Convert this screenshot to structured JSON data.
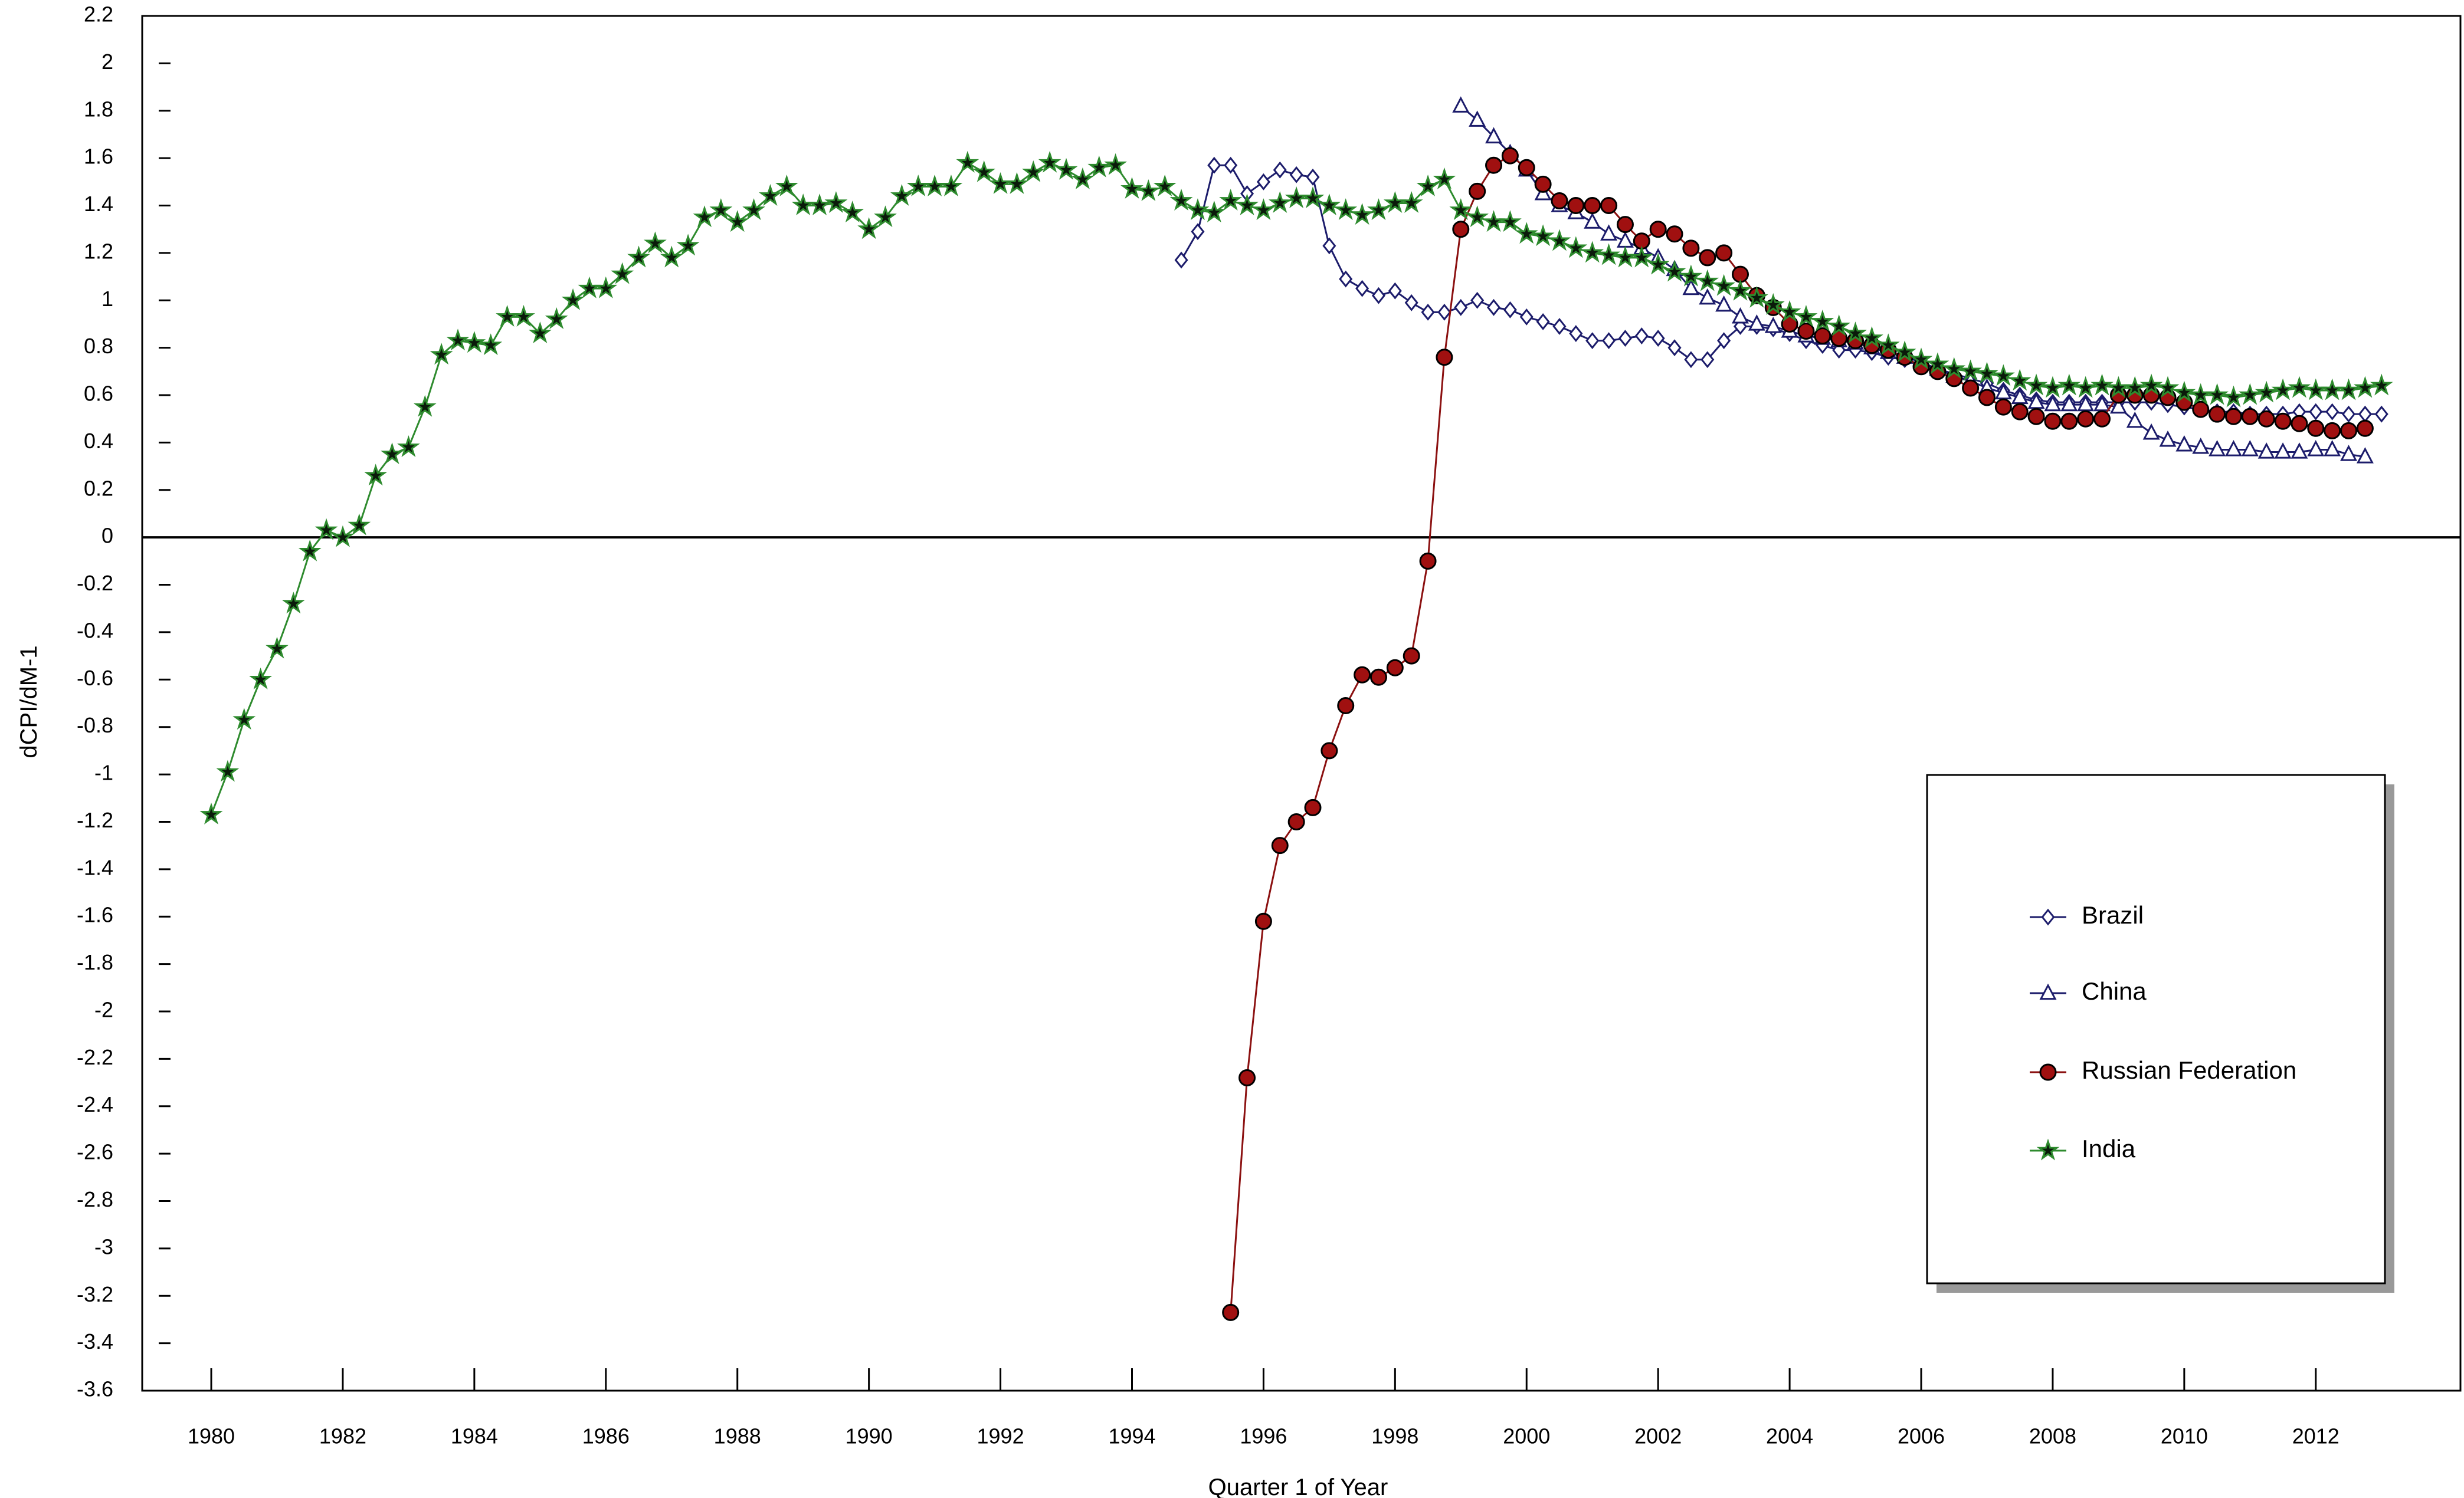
{
  "chart_data": {
    "type": "line",
    "x_label": "Quarter 1 of Year",
    "y_label": "dCPI/dM-1",
    "xlim": [
      1978.95,
      2014.2
    ],
    "xticks": [
      1980,
      1982,
      1984,
      1986,
      1988,
      1990,
      1992,
      1994,
      1996,
      1998,
      2000,
      2002,
      2004,
      2006,
      2008,
      2010,
      2012
    ],
    "ylim": [
      -3.6,
      2.2
    ],
    "yticks": [
      -3.6,
      -3.4,
      -3.2,
      -3,
      -2.8,
      -2.6,
      -2.4,
      -2.2,
      -2,
      -1.8,
      -1.6,
      -1.4,
      -1.2,
      -1,
      -0.8,
      -0.6,
      -0.4,
      -0.2,
      0,
      0.2,
      0.4,
      0.6,
      0.8,
      1,
      1.2,
      1.4,
      1.6,
      1.8,
      2,
      2.2
    ],
    "legend": "lower right",
    "series": [
      {
        "name": "Brazil",
        "color": "#1c1c6b",
        "marker": "diamond",
        "marker_fill": "#ffffff",
        "x": [
          1994.75,
          1995,
          1995.25,
          1995.5,
          1995.75,
          1996,
          1996.25,
          1996.5,
          1996.75,
          1997,
          1997.25,
          1997.5,
          1997.75,
          1998,
          1998.25,
          1998.5,
          1998.75,
          1999,
          1999.25,
          1999.5,
          1999.75,
          2000,
          2000.25,
          2000.5,
          2000.75,
          2001,
          2001.25,
          2001.5,
          2001.75,
          2002,
          2002.25,
          2002.5,
          2002.75,
          2003,
          2003.25,
          2003.5,
          2003.75,
          2004,
          2004.25,
          2004.5,
          2004.75,
          2005,
          2005.25,
          2005.5,
          2005.75,
          2006,
          2006.25,
          2006.5,
          2006.75,
          2007,
          2007.25,
          2007.5,
          2007.75,
          2008,
          2008.25,
          2008.5,
          2008.75,
          2009,
          2009.25,
          2009.5,
          2009.75,
          2010,
          2010.25,
          2010.5,
          2010.75,
          2011,
          2011.25,
          2011.5,
          2011.75,
          2012,
          2012.25,
          2012.5,
          2012.75,
          2013
        ],
        "values": [
          1.17,
          1.29,
          1.57,
          1.57,
          1.45,
          1.5,
          1.55,
          1.53,
          1.52,
          1.23,
          1.09,
          1.05,
          1.02,
          1.04,
          0.99,
          0.95,
          0.95,
          0.97,
          1.0,
          0.97,
          0.96,
          0.93,
          0.91,
          0.89,
          0.86,
          0.83,
          0.83,
          0.84,
          0.85,
          0.84,
          0.8,
          0.75,
          0.75,
          0.83,
          0.89,
          0.89,
          0.88,
          0.86,
          0.83,
          0.81,
          0.79,
          0.79,
          0.78,
          0.76,
          0.75,
          0.73,
          0.71,
          0.69,
          0.67,
          0.65,
          0.62,
          0.6,
          0.58,
          0.57,
          0.57,
          0.57,
          0.57,
          0.57,
          0.57,
          0.57,
          0.56,
          0.55,
          0.54,
          0.53,
          0.53,
          0.52,
          0.52,
          0.52,
          0.53,
          0.53,
          0.53,
          0.52,
          0.52,
          0.52
        ]
      },
      {
        "name": "China",
        "color": "#1c1c6b",
        "marker": "triangle",
        "marker_fill": "#ffffff",
        "x": [
          1999,
          1999.25,
          1999.5,
          1999.75,
          2000,
          2000.25,
          2000.5,
          2000.75,
          2001,
          2001.25,
          2001.5,
          2001.75,
          2002,
          2002.25,
          2002.5,
          2002.75,
          2003,
          2003.25,
          2003.5,
          2003.75,
          2004,
          2004.25,
          2004.5,
          2004.75,
          2005,
          2005.25,
          2005.5,
          2005.75,
          2006,
          2006.25,
          2006.5,
          2006.75,
          2007,
          2007.25,
          2007.5,
          2007.75,
          2008,
          2008.25,
          2008.5,
          2008.75,
          2009,
          2009.25,
          2009.5,
          2009.75,
          2010,
          2010.25,
          2010.5,
          2010.75,
          2011,
          2011.25,
          2011.5,
          2011.75,
          2012,
          2012.25,
          2012.5,
          2012.75
        ],
        "values": [
          1.82,
          1.76,
          1.69,
          1.62,
          1.55,
          1.45,
          1.4,
          1.37,
          1.33,
          1.28,
          1.25,
          1.22,
          1.18,
          1.13,
          1.05,
          1.01,
          0.98,
          0.93,
          0.9,
          0.89,
          0.87,
          0.85,
          0.84,
          0.83,
          0.82,
          0.8,
          0.78,
          0.76,
          0.74,
          0.71,
          0.68,
          0.66,
          0.63,
          0.61,
          0.59,
          0.57,
          0.56,
          0.56,
          0.56,
          0.56,
          0.55,
          0.49,
          0.44,
          0.41,
          0.39,
          0.38,
          0.37,
          0.37,
          0.37,
          0.36,
          0.36,
          0.36,
          0.37,
          0.37,
          0.35,
          0.34
        ]
      },
      {
        "name": "Russian Federation",
        "color": "#8b1010",
        "marker": "circle",
        "marker_fill": "#a01010",
        "x": [
          1995.5,
          1995.75,
          1996,
          1996.25,
          1996.5,
          1996.75,
          1997,
          1997.25,
          1997.5,
          1997.75,
          1998,
          1998.25,
          1998.5,
          1998.75,
          1999,
          1999.25,
          1999.5,
          1999.75,
          2000,
          2000.25,
          2000.5,
          2000.75,
          2001,
          2001.25,
          2001.5,
          2001.75,
          2002,
          2002.25,
          2002.5,
          2002.75,
          2003,
          2003.25,
          2003.5,
          2003.75,
          2004,
          2004.25,
          2004.5,
          2004.75,
          2005,
          2005.25,
          2005.5,
          2005.75,
          2006,
          2006.25,
          2006.5,
          2006.75,
          2007,
          2007.25,
          2007.5,
          2007.75,
          2008,
          2008.25,
          2008.5,
          2008.75,
          2009,
          2009.25,
          2009.5,
          2009.75,
          2010,
          2010.25,
          2010.5,
          2010.75,
          2011,
          2011.25,
          2011.5,
          2011.75,
          2012,
          2012.25,
          2012.5,
          2012.75
        ],
        "values": [
          -3.27,
          -2.28,
          -1.62,
          -1.3,
          -1.2,
          -1.14,
          -0.9,
          -0.71,
          -0.58,
          -0.59,
          -0.55,
          -0.5,
          -0.1,
          0.76,
          1.3,
          1.46,
          1.57,
          1.61,
          1.56,
          1.49,
          1.42,
          1.4,
          1.4,
          1.4,
          1.32,
          1.25,
          1.3,
          1.28,
          1.22,
          1.18,
          1.2,
          1.11,
          1.02,
          0.97,
          0.9,
          0.87,
          0.85,
          0.84,
          0.83,
          0.81,
          0.79,
          0.76,
          0.72,
          0.7,
          0.67,
          0.63,
          0.59,
          0.55,
          0.53,
          0.51,
          0.49,
          0.49,
          0.5,
          0.5,
          0.6,
          0.6,
          0.6,
          0.59,
          0.57,
          0.54,
          0.52,
          0.51,
          0.51,
          0.5,
          0.49,
          0.48,
          0.46,
          0.45,
          0.45,
          0.46
        ]
      },
      {
        "name": "India",
        "color": "#2e8b2e",
        "marker": "star",
        "marker_fill": "#0a1a0a",
        "x": [
          1980,
          1980.25,
          1980.5,
          1980.75,
          1981,
          1981.25,
          1981.5,
          1981.75,
          1982,
          1982.25,
          1982.5,
          1982.75,
          1983,
          1983.25,
          1983.5,
          1983.75,
          1984,
          1984.25,
          1984.5,
          1984.75,
          1985,
          1985.25,
          1985.5,
          1985.75,
          1986,
          1986.25,
          1986.5,
          1986.75,
          1987,
          1987.25,
          1987.5,
          1987.75,
          1988,
          1988.25,
          1988.5,
          1988.75,
          1989,
          1989.25,
          1989.5,
          1989.75,
          1990,
          1990.25,
          1990.5,
          1990.75,
          1991,
          1991.25,
          1991.5,
          1991.75,
          1992,
          1992.25,
          1992.5,
          1992.75,
          1993,
          1993.25,
          1993.5,
          1993.75,
          1994,
          1994.25,
          1994.5,
          1994.75,
          1995,
          1995.25,
          1995.5,
          1995.75,
          1996,
          1996.25,
          1996.5,
          1996.75,
          1997,
          1997.25,
          1997.5,
          1997.75,
          1998,
          1998.25,
          1998.5,
          1998.75,
          1999,
          1999.25,
          1999.5,
          1999.75,
          2000,
          2000.25,
          2000.5,
          2000.75,
          2001,
          2001.25,
          2001.5,
          2001.75,
          2002,
          2002.25,
          2002.5,
          2002.75,
          2003,
          2003.25,
          2003.5,
          2003.75,
          2004,
          2004.25,
          2004.5,
          2004.75,
          2005,
          2005.25,
          2005.5,
          2005.75,
          2006,
          2006.25,
          2006.5,
          2006.75,
          2007,
          2007.25,
          2007.5,
          2007.75,
          2008,
          2008.25,
          2008.5,
          2008.75,
          2009,
          2009.25,
          2009.5,
          2009.75,
          2010,
          2010.25,
          2010.5,
          2010.75,
          2011,
          2011.25,
          2011.5,
          2011.75,
          2012,
          2012.25,
          2012.5,
          2012.75,
          2013
        ],
        "values": [
          -1.17,
          -0.99,
          -0.77,
          -0.6,
          -0.47,
          -0.28,
          -0.06,
          0.03,
          0.0,
          0.05,
          0.26,
          0.35,
          0.38,
          0.55,
          0.77,
          0.83,
          0.82,
          0.81,
          0.93,
          0.93,
          0.86,
          0.92,
          1.0,
          1.05,
          1.05,
          1.11,
          1.18,
          1.24,
          1.18,
          1.23,
          1.35,
          1.38,
          1.33,
          1.38,
          1.44,
          1.48,
          1.4,
          1.4,
          1.41,
          1.37,
          1.3,
          1.35,
          1.44,
          1.48,
          1.48,
          1.48,
          1.58,
          1.54,
          1.49,
          1.49,
          1.54,
          1.58,
          1.55,
          1.51,
          1.56,
          1.57,
          1.47,
          1.46,
          1.48,
          1.42,
          1.38,
          1.37,
          1.42,
          1.4,
          1.38,
          1.41,
          1.43,
          1.43,
          1.4,
          1.38,
          1.36,
          1.38,
          1.41,
          1.41,
          1.48,
          1.51,
          1.38,
          1.35,
          1.33,
          1.33,
          1.28,
          1.27,
          1.25,
          1.22,
          1.2,
          1.19,
          1.18,
          1.18,
          1.15,
          1.12,
          1.1,
          1.08,
          1.06,
          1.04,
          1.01,
          0.98,
          0.95,
          0.93,
          0.91,
          0.89,
          0.86,
          0.84,
          0.81,
          0.78,
          0.75,
          0.73,
          0.71,
          0.7,
          0.69,
          0.68,
          0.66,
          0.64,
          0.63,
          0.64,
          0.63,
          0.64,
          0.63,
          0.63,
          0.64,
          0.63,
          0.61,
          0.6,
          0.6,
          0.59,
          0.6,
          0.61,
          0.62,
          0.63,
          0.62,
          0.62,
          0.62,
          0.63,
          0.64
        ]
      }
    ]
  }
}
